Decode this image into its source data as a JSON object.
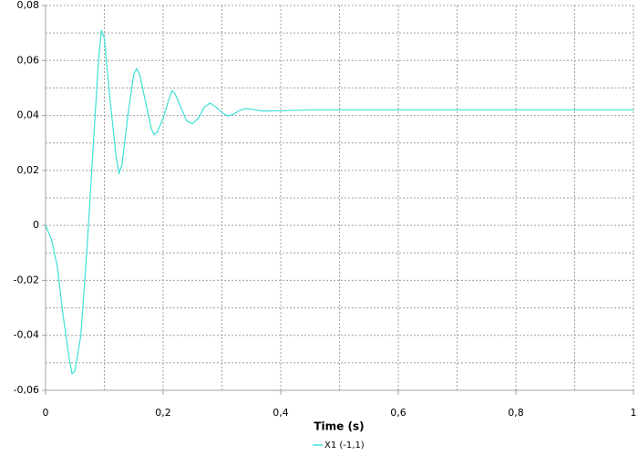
{
  "chart_data": {
    "type": "line",
    "xlabel": "Time (s)",
    "x": [
      0,
      0.01,
      0.02,
      0.03,
      0.04,
      0.045,
      0.05,
      0.06,
      0.07,
      0.08,
      0.09,
      0.095,
      0.1,
      0.11,
      0.12,
      0.125,
      0.13,
      0.14,
      0.15,
      0.155,
      0.16,
      0.17,
      0.18,
      0.185,
      0.19,
      0.2,
      0.21,
      0.215,
      0.22,
      0.23,
      0.24,
      0.25,
      0.26,
      0.27,
      0.28,
      0.29,
      0.3,
      0.31,
      0.32,
      0.33,
      0.34,
      0.35,
      0.37,
      0.4,
      0.45,
      1.0
    ],
    "series": [
      {
        "name": "X1 (-1,1)",
        "color": "#3fe0d8",
        "values": [
          0,
          -0.005,
          -0.015,
          -0.033,
          -0.048,
          -0.054,
          -0.053,
          -0.04,
          -0.01,
          0.025,
          0.06,
          0.071,
          0.068,
          0.045,
          0.025,
          0.019,
          0.022,
          0.04,
          0.055,
          0.057,
          0.055,
          0.045,
          0.035,
          0.033,
          0.034,
          0.039,
          0.046,
          0.049,
          0.048,
          0.043,
          0.038,
          0.037,
          0.039,
          0.043,
          0.0445,
          0.043,
          0.041,
          0.0398,
          0.0405,
          0.0418,
          0.0425,
          0.0422,
          0.0416,
          0.0417,
          0.042,
          0.042
        ]
      }
    ],
    "xlim": [
      0,
      1
    ],
    "xticks": [
      0,
      {
        "value": 0.2,
        "label": "0,2"
      },
      {
        "value": 0.4,
        "label": "0,4"
      },
      {
        "value": 0.6,
        "label": "0,6"
      },
      {
        "value": 0.8,
        "label": "0,8"
      },
      1
    ],
    "ylim": [
      -0.06,
      0.08
    ],
    "yticks": [
      {
        "value": -0.06,
        "label": "-0,06"
      },
      {
        "value": -0.04,
        "label": "-0,04"
      },
      {
        "value": -0.02,
        "label": "-0,02"
      },
      0,
      {
        "value": 0.02,
        "label": "0,02"
      },
      {
        "value": 0.04,
        "label": "0,04"
      },
      {
        "value": 0.06,
        "label": "0,06"
      },
      {
        "value": 0.08,
        "label": "0,08"
      }
    ],
    "xminor": [
      0.1,
      0.3,
      0.5,
      0.7,
      0.9
    ],
    "yminor": [
      -0.05,
      -0.03,
      -0.01,
      0.01,
      0.03,
      0.05,
      0.07
    ],
    "grid": true
  }
}
